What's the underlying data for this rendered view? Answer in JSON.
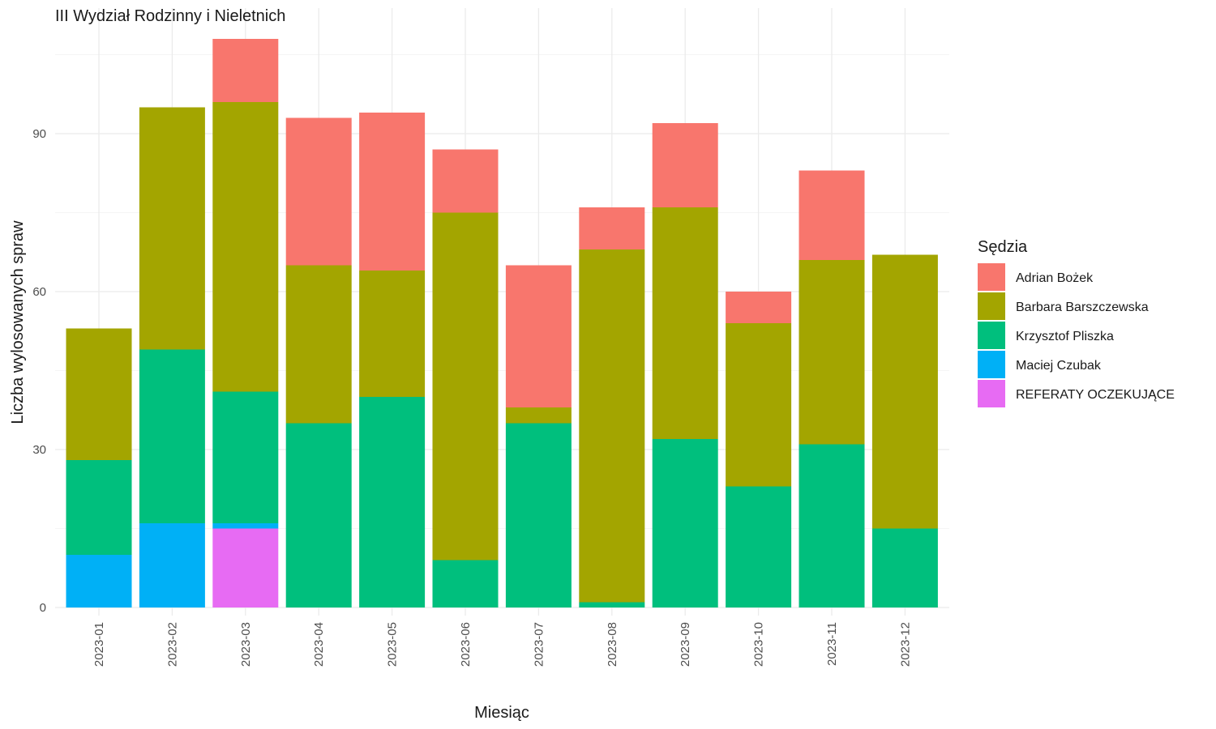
{
  "chart_data": {
    "type": "bar",
    "stacked": true,
    "title": "III Wydział Rodzinny i Nieletnich",
    "xlabel": "Miesiąc",
    "ylabel": "Liczba wylosowanych spraw",
    "legend_title": "Sędzia",
    "legend_position": "right",
    "grid": true,
    "ylim": [
      0,
      108
    ],
    "yticks": [
      0,
      30,
      60,
      90
    ],
    "categories": [
      "2023-01",
      "2023-02",
      "2023-03",
      "2023-04",
      "2023-05",
      "2023-06",
      "2023-07",
      "2023-08",
      "2023-09",
      "2023-10",
      "2023-11",
      "2023-12"
    ],
    "series": [
      {
        "name": "Adrian Bożek",
        "color": "#F8766D",
        "values": [
          0,
          0,
          12,
          28,
          30,
          12,
          27,
          8,
          16,
          6,
          17,
          0
        ]
      },
      {
        "name": "Barbara Barszczewska",
        "color": "#A3A500",
        "values": [
          25,
          46,
          55,
          30,
          24,
          66,
          3,
          67,
          44,
          31,
          35,
          52
        ]
      },
      {
        "name": "Krzysztof Pliszka",
        "color": "#00BF7D",
        "values": [
          18,
          33,
          25,
          35,
          40,
          9,
          35,
          1,
          32,
          23,
          31,
          15
        ]
      },
      {
        "name": "Maciej Czubak",
        "color": "#00B0F6",
        "values": [
          10,
          16,
          1,
          0,
          0,
          0,
          0,
          0,
          0,
          0,
          0,
          0
        ]
      },
      {
        "name": "REFERATY OCZEKUJĄCE",
        "color": "#E76BF3",
        "values": [
          0,
          0,
          15,
          0,
          0,
          0,
          0,
          0,
          0,
          0,
          0,
          0
        ]
      }
    ]
  }
}
